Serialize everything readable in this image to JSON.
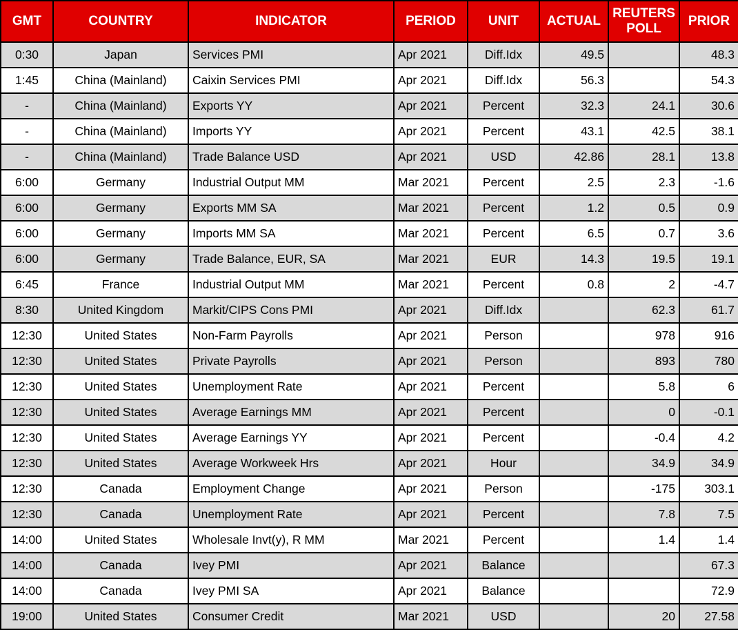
{
  "colors": {
    "header_bg": "#e00000",
    "header_text": "#ffffff",
    "row_bg": "#ffffff",
    "row_alt_bg": "#d9d9d9",
    "border": "#000000"
  },
  "chart_data": {
    "type": "table",
    "columns": [
      {
        "key": "gmt",
        "label": "GMT"
      },
      {
        "key": "country",
        "label": "COUNTRY"
      },
      {
        "key": "indicator",
        "label": "INDICATOR"
      },
      {
        "key": "period",
        "label": "PERIOD"
      },
      {
        "key": "unit",
        "label": "UNIT"
      },
      {
        "key": "actual",
        "label": "ACTUAL"
      },
      {
        "key": "poll",
        "label": "REUTERS POLL"
      },
      {
        "key": "prior",
        "label": "PRIOR"
      }
    ],
    "rows": [
      {
        "gmt": "0:30",
        "country": "Japan",
        "indicator": "Services PMI",
        "period": "Apr 2021",
        "unit": "Diff.Idx",
        "actual": "49.5",
        "poll": "",
        "prior": "48.3"
      },
      {
        "gmt": "1:45",
        "country": "China (Mainland)",
        "indicator": "Caixin Services PMI",
        "period": "Apr 2021",
        "unit": "Diff.Idx",
        "actual": "56.3",
        "poll": "",
        "prior": "54.3"
      },
      {
        "gmt": "-",
        "country": "China (Mainland)",
        "indicator": "Exports YY",
        "period": "Apr 2021",
        "unit": "Percent",
        "actual": "32.3",
        "poll": "24.1",
        "prior": "30.6"
      },
      {
        "gmt": "-",
        "country": "China (Mainland)",
        "indicator": "Imports YY",
        "period": "Apr 2021",
        "unit": "Percent",
        "actual": "43.1",
        "poll": "42.5",
        "prior": "38.1"
      },
      {
        "gmt": "-",
        "country": "China (Mainland)",
        "indicator": "Trade Balance USD",
        "period": "Apr 2021",
        "unit": "USD",
        "actual": "42.86",
        "poll": "28.1",
        "prior": "13.8"
      },
      {
        "gmt": "6:00",
        "country": "Germany",
        "indicator": "Industrial Output MM",
        "period": "Mar 2021",
        "unit": "Percent",
        "actual": "2.5",
        "poll": "2.3",
        "prior": "-1.6"
      },
      {
        "gmt": "6:00",
        "country": "Germany",
        "indicator": "Exports MM SA",
        "period": "Mar 2021",
        "unit": "Percent",
        "actual": "1.2",
        "poll": "0.5",
        "prior": "0.9"
      },
      {
        "gmt": "6:00",
        "country": "Germany",
        "indicator": "Imports MM SA",
        "period": "Mar 2021",
        "unit": "Percent",
        "actual": "6.5",
        "poll": "0.7",
        "prior": "3.6"
      },
      {
        "gmt": "6:00",
        "country": "Germany",
        "indicator": "Trade Balance, EUR, SA",
        "period": "Mar 2021",
        "unit": "EUR",
        "actual": "14.3",
        "poll": "19.5",
        "prior": "19.1"
      },
      {
        "gmt": "6:45",
        "country": "France",
        "indicator": "Industrial Output MM",
        "period": "Mar 2021",
        "unit": "Percent",
        "actual": "0.8",
        "poll": "2",
        "prior": "-4.7"
      },
      {
        "gmt": "8:30",
        "country": "United Kingdom",
        "indicator": "Markit/CIPS Cons PMI",
        "period": "Apr 2021",
        "unit": "Diff.Idx",
        "actual": "",
        "poll": "62.3",
        "prior": "61.7"
      },
      {
        "gmt": "12:30",
        "country": "United States",
        "indicator": "Non-Farm Payrolls",
        "period": "Apr 2021",
        "unit": "Person",
        "actual": "",
        "poll": "978",
        "prior": "916"
      },
      {
        "gmt": "12:30",
        "country": "United States",
        "indicator": "Private Payrolls",
        "period": "Apr 2021",
        "unit": "Person",
        "actual": "",
        "poll": "893",
        "prior": "780"
      },
      {
        "gmt": "12:30",
        "country": "United States",
        "indicator": "Unemployment Rate",
        "period": "Apr 2021",
        "unit": "Percent",
        "actual": "",
        "poll": "5.8",
        "prior": "6"
      },
      {
        "gmt": "12:30",
        "country": "United States",
        "indicator": "Average Earnings MM",
        "period": "Apr 2021",
        "unit": "Percent",
        "actual": "",
        "poll": "0",
        "prior": "-0.1"
      },
      {
        "gmt": "12:30",
        "country": "United States",
        "indicator": "Average Earnings YY",
        "period": "Apr 2021",
        "unit": "Percent",
        "actual": "",
        "poll": "-0.4",
        "prior": "4.2"
      },
      {
        "gmt": "12:30",
        "country": "United States",
        "indicator": "Average Workweek Hrs",
        "period": "Apr 2021",
        "unit": "Hour",
        "actual": "",
        "poll": "34.9",
        "prior": "34.9"
      },
      {
        "gmt": "12:30",
        "country": "Canada",
        "indicator": "Employment Change",
        "period": "Apr 2021",
        "unit": "Person",
        "actual": "",
        "poll": "-175",
        "prior": "303.1"
      },
      {
        "gmt": "12:30",
        "country": "Canada",
        "indicator": "Unemployment Rate",
        "period": "Apr 2021",
        "unit": "Percent",
        "actual": "",
        "poll": "7.8",
        "prior": "7.5"
      },
      {
        "gmt": "14:00",
        "country": "United States",
        "indicator": "Wholesale Invt(y), R MM",
        "period": "Mar 2021",
        "unit": "Percent",
        "actual": "",
        "poll": "1.4",
        "prior": "1.4"
      },
      {
        "gmt": "14:00",
        "country": "Canada",
        "indicator": "Ivey PMI",
        "period": "Apr 2021",
        "unit": "Balance",
        "actual": "",
        "poll": "",
        "prior": "67.3"
      },
      {
        "gmt": "14:00",
        "country": "Canada",
        "indicator": "Ivey PMI SA",
        "period": "Apr 2021",
        "unit": "Balance",
        "actual": "",
        "poll": "",
        "prior": "72.9"
      },
      {
        "gmt": "19:00",
        "country": "United States",
        "indicator": "Consumer Credit",
        "period": "Mar 2021",
        "unit": "USD",
        "actual": "",
        "poll": "20",
        "prior": "27.58"
      }
    ]
  }
}
